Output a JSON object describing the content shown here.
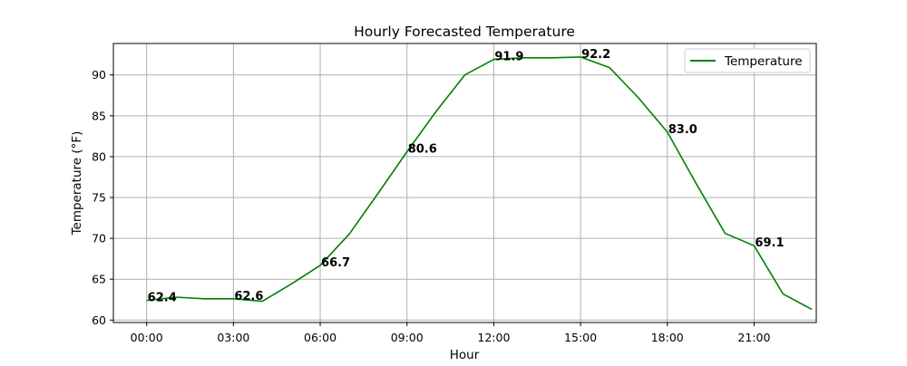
{
  "chart_data": {
    "type": "line",
    "title": "Hourly Forecasted Temperature",
    "xlabel": "Hour",
    "ylabel": "Temperature (°F)",
    "x_tick_labels": [
      "00:00",
      "03:00",
      "06:00",
      "09:00",
      "12:00",
      "15:00",
      "18:00",
      "21:00"
    ],
    "x_tick_hours": [
      0,
      3,
      6,
      9,
      12,
      15,
      18,
      21
    ],
    "y_ticks": [
      60,
      65,
      70,
      75,
      80,
      85,
      90
    ],
    "xlim": [
      -1.15,
      23.15
    ],
    "ylim": [
      59.7,
      93.85
    ],
    "grid": true,
    "legend_position": "top-right",
    "series": [
      {
        "name": "Temperature",
        "color": "#008000",
        "x": [
          0,
          1,
          2,
          3,
          4,
          5,
          6,
          7,
          8,
          9,
          10,
          11,
          12,
          13,
          14,
          15,
          16,
          17,
          18,
          19,
          20,
          21,
          22,
          23
        ],
        "values": [
          62.4,
          62.8,
          62.6,
          62.6,
          62.3,
          64.4,
          66.7,
          70.5,
          75.5,
          80.6,
          85.5,
          90.0,
          91.9,
          92.1,
          92.1,
          92.2,
          90.9,
          87.2,
          83.0,
          76.7,
          70.6,
          69.1,
          63.2,
          61.3
        ]
      }
    ],
    "data_labels": [
      {
        "x": 0,
        "text": "62.4"
      },
      {
        "x": 3,
        "text": "62.6"
      },
      {
        "x": 6,
        "text": "66.7"
      },
      {
        "x": 9,
        "text": "80.6"
      },
      {
        "x": 12,
        "text": "91.9"
      },
      {
        "x": 15,
        "text": "92.2"
      },
      {
        "x": 18,
        "text": "83.0"
      },
      {
        "x": 21,
        "text": "69.1"
      }
    ]
  }
}
